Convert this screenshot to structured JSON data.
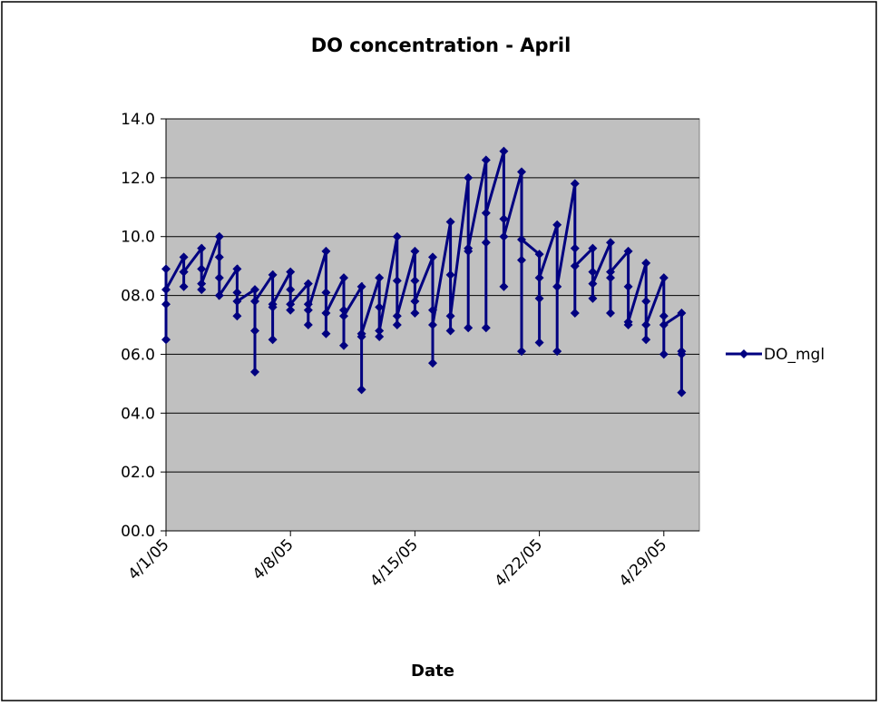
{
  "chart_data": {
    "type": "line",
    "title": "DO concentration - April",
    "xlabel": "Date",
    "x": [
      "4/1/05",
      "4/1/05",
      "4/1/05",
      "4/1/05",
      "4/2/05",
      "4/2/05",
      "4/2/05",
      "4/2/05",
      "4/3/05",
      "4/3/05",
      "4/3/05",
      "4/3/05",
      "4/4/05",
      "4/4/05",
      "4/4/05",
      "4/4/05",
      "4/5/05",
      "4/5/05",
      "4/5/05",
      "4/5/05",
      "4/6/05",
      "4/6/05",
      "4/6/05",
      "4/6/05",
      "4/7/05",
      "4/7/05",
      "4/7/05",
      "4/7/05",
      "4/8/05",
      "4/8/05",
      "4/8/05",
      "4/8/05",
      "4/9/05",
      "4/9/05",
      "4/9/05",
      "4/9/05",
      "4/10/05",
      "4/10/05",
      "4/10/05",
      "4/10/05",
      "4/11/05",
      "4/11/05",
      "4/11/05",
      "4/11/05",
      "4/12/05",
      "4/12/05",
      "4/12/05",
      "4/12/05",
      "4/13/05",
      "4/13/05",
      "4/13/05",
      "4/13/05",
      "4/14/05",
      "4/14/05",
      "4/14/05",
      "4/14/05",
      "4/15/05",
      "4/15/05",
      "4/15/05",
      "4/15/05",
      "4/16/05",
      "4/16/05",
      "4/16/05",
      "4/16/05",
      "4/17/05",
      "4/17/05",
      "4/17/05",
      "4/17/05",
      "4/18/05",
      "4/18/05",
      "4/18/05",
      "4/18/05",
      "4/19/05",
      "4/19/05",
      "4/19/05",
      "4/19/05",
      "4/20/05",
      "4/20/05",
      "4/20/05",
      "4/20/05",
      "4/21/05",
      "4/21/05",
      "4/21/05",
      "4/21/05",
      "4/22/05",
      "4/22/05",
      "4/22/05",
      "4/22/05",
      "4/23/05",
      "4/23/05",
      "4/23/05",
      "4/23/05",
      "4/24/05",
      "4/24/05",
      "4/24/05",
      "4/24/05",
      "4/25/05",
      "4/25/05",
      "4/25/05",
      "4/25/05",
      "4/26/05",
      "4/26/05",
      "4/26/05",
      "4/26/05",
      "4/27/05",
      "4/27/05",
      "4/27/05",
      "4/27/05",
      "4/28/05",
      "4/28/05",
      "4/28/05",
      "4/28/05",
      "4/29/05",
      "4/29/05",
      "4/29/05",
      "4/29/05",
      "4/30/05",
      "4/30/05",
      "4/30/05",
      "4/30/05"
    ],
    "series": [
      {
        "name": "DO_mgl",
        "color": "#000080",
        "values": [
          8.9,
          7.7,
          6.5,
          8.2,
          9.3,
          8.8,
          8.3,
          8.8,
          9.6,
          8.9,
          8.2,
          8.4,
          10.0,
          9.3,
          8.6,
          8.0,
          8.9,
          8.1,
          7.3,
          7.8,
          8.2,
          6.8,
          5.4,
          7.8,
          8.7,
          7.6,
          6.5,
          7.7,
          8.8,
          8.2,
          7.5,
          7.7,
          8.4,
          7.7,
          7.0,
          7.5,
          9.5,
          8.1,
          6.7,
          7.4,
          8.6,
          7.5,
          6.3,
          7.3,
          8.3,
          6.6,
          4.8,
          6.7,
          8.6,
          7.6,
          6.6,
          6.8,
          10.0,
          8.5,
          7.0,
          7.3,
          9.5,
          8.5,
          7.4,
          7.8,
          9.3,
          7.5,
          5.7,
          7.0,
          10.5,
          8.7,
          6.8,
          7.3,
          12.0,
          9.5,
          6.9,
          9.6,
          12.6,
          9.8,
          6.9,
          10.8,
          12.9,
          10.6,
          8.3,
          10.0,
          12.2,
          9.2,
          6.1,
          9.9,
          9.4,
          7.9,
          6.4,
          8.6,
          10.4,
          8.3,
          6.1,
          8.3,
          11.8,
          9.6,
          7.4,
          9.0,
          9.6,
          8.8,
          7.9,
          8.4,
          9.8,
          8.6,
          7.4,
          8.8,
          9.5,
          8.3,
          7.0,
          7.1,
          9.1,
          7.8,
          6.5,
          7.0,
          8.6,
          7.3,
          6.0,
          7.0,
          7.4,
          6.1,
          4.7,
          6.0
        ]
      }
    ],
    "xlim": [
      "4/1/05",
      "5/1/05"
    ],
    "xticks": [
      "4/1/05",
      "4/8/05",
      "4/15/05",
      "4/22/05",
      "4/29/05"
    ],
    "ylim": [
      0,
      14
    ],
    "yticks": [
      {
        "value": 0,
        "label": "00.0"
      },
      {
        "value": 2,
        "label": "02.0"
      },
      {
        "value": 4,
        "label": "04.0"
      },
      {
        "value": 6,
        "label": "06.0"
      },
      {
        "value": 8,
        "label": "08.0"
      },
      {
        "value": 10,
        "label": "10.0"
      },
      {
        "value": 12,
        "label": "12.0"
      },
      {
        "value": 14,
        "label": "14.0"
      }
    ],
    "grid": true,
    "legend": "right"
  }
}
